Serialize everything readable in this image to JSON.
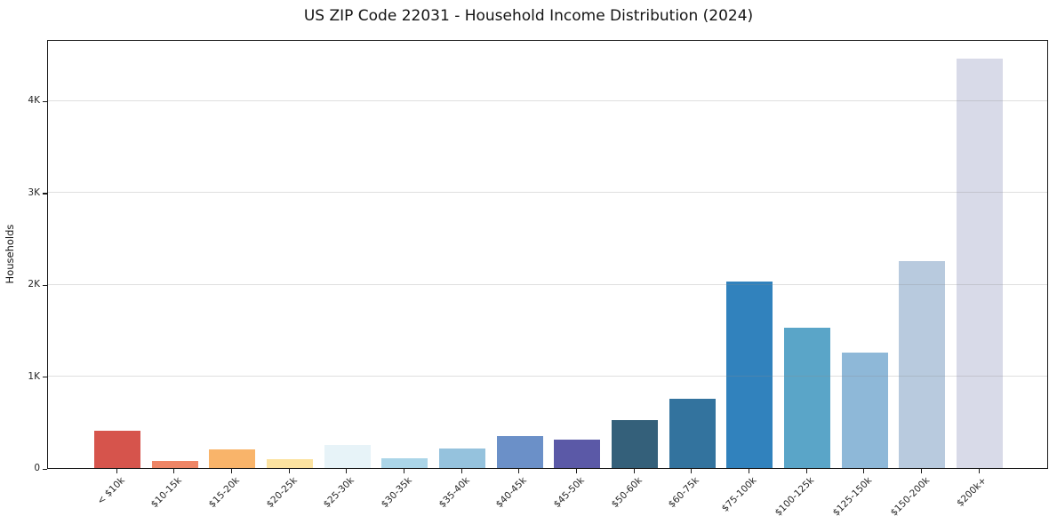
{
  "chart_data": {
    "type": "bar",
    "title": "US ZIP Code 22031 - Household Income Distribution (2024)",
    "xlabel": "",
    "ylabel": "Households",
    "categories": [
      "< $10k",
      "$10-15k",
      "$15-20k",
      "$20-25k",
      "$25-30k",
      "$30-35k",
      "$35-40k",
      "$40-45k",
      "$45-50k",
      "$50-60k",
      "$60-75k",
      "$75-100k",
      "$100-125k",
      "$125-150k",
      "$150-200k",
      "$200k+"
    ],
    "values": [
      410,
      75,
      205,
      100,
      255,
      110,
      210,
      345,
      305,
      525,
      750,
      2030,
      1525,
      1255,
      2250,
      4455
    ],
    "bar_colors": [
      "#d6544c",
      "#ee8566",
      "#f9b46a",
      "#fce2a0",
      "#e7f3f8",
      "#abd5e8",
      "#95c2dd",
      "#6b90c8",
      "#5b59a7",
      "#34607a",
      "#33739e",
      "#3182bd",
      "#5aa5c8",
      "#8eb8d8",
      "#b8cade",
      "#d8dae8"
    ],
    "ylim": [
      0,
      4670
    ],
    "yticks": [
      {
        "value": 0,
        "label": "0"
      },
      {
        "value": 1000,
        "label": "1K"
      },
      {
        "value": 2000,
        "label": "2K"
      },
      {
        "value": 3000,
        "label": "3K"
      },
      {
        "value": 4000,
        "label": "4K"
      }
    ],
    "grid": "horizontal-only",
    "legend": "none"
  }
}
